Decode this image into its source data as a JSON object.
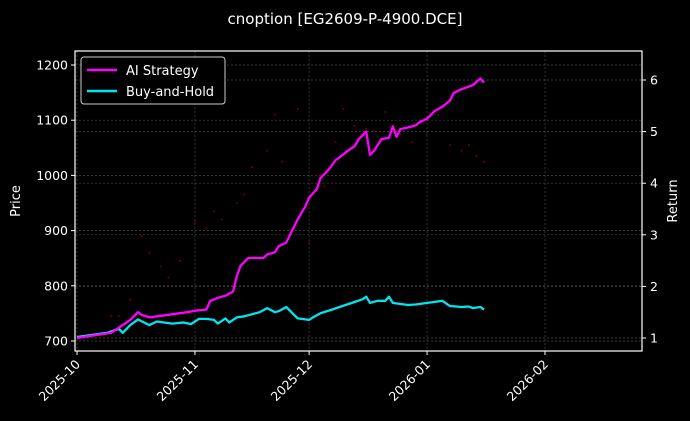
{
  "chart_data": {
    "type": "line",
    "title": "cnoption [EG2609-P-4900.DCE]",
    "xlabel": "",
    "ylabel": "Price",
    "ylabel_right": "Return",
    "x_ticks": [
      "2025-10",
      "2025-11",
      "2025-12",
      "2026-01",
      "2026-02"
    ],
    "y_ticks_left": [
      700,
      800,
      900,
      1000,
      1100,
      1200
    ],
    "y_ticks_right": [
      1,
      2,
      3,
      4,
      5,
      6
    ],
    "ylim_left": [
      690,
      1225
    ],
    "ylim_right": [
      0.75,
      6.5
    ],
    "grid": true,
    "legend": {
      "position": "upper left",
      "entries": [
        "AI Strategy",
        "Buy-and-Hold"
      ]
    },
    "colors": {
      "ai": "#ff00ff",
      "bh": "#00e5ee",
      "price_dots": "#8b0000",
      "background": "#000000",
      "axes": "#ffffff",
      "grid": "#555555"
    },
    "series": [
      {
        "name": "AI Strategy",
        "axis": "right",
        "x": [
          "2025-10-01",
          "2025-10-10",
          "2025-10-14",
          "2025-10-15",
          "2025-10-17",
          "2025-10-18",
          "2025-10-20",
          "2025-10-22",
          "2025-10-24",
          "2025-10-26",
          "2025-10-28",
          "2025-10-30",
          "2025-11-01",
          "2025-11-04",
          "2025-11-05",
          "2025-11-07",
          "2025-11-09",
          "2025-11-11",
          "2025-11-12",
          "2025-11-13",
          "2025-11-15",
          "2025-11-19",
          "2025-11-20",
          "2025-11-22",
          "2025-11-23",
          "2025-11-25",
          "2025-11-26",
          "2025-11-28",
          "2025-11-30",
          "2025-12-01",
          "2025-12-03",
          "2025-12-04",
          "2025-12-06",
          "2025-12-08",
          "2025-12-09",
          "2025-12-11",
          "2025-12-13",
          "2025-12-14",
          "2025-12-16",
          "2025-12-17",
          "2025-12-18",
          "2025-12-20",
          "2025-12-22",
          "2025-12-23",
          "2025-12-24",
          "2025-12-25",
          "2025-12-27",
          "2025-12-29",
          "2025-12-30",
          "2026-01-01",
          "2026-01-03",
          "2026-01-05",
          "2026-01-07",
          "2026-01-08",
          "2026-01-10",
          "2026-01-13",
          "2026-01-15",
          "2026-01-16"
        ],
        "values": [
          1.0,
          1.1,
          1.3,
          1.35,
          1.5,
          1.45,
          1.4,
          1.42,
          1.44,
          1.46,
          1.48,
          1.5,
          1.53,
          1.55,
          1.72,
          1.78,
          1.82,
          1.9,
          2.2,
          2.4,
          2.55,
          2.55,
          2.62,
          2.66,
          2.78,
          2.85,
          3.0,
          3.3,
          3.55,
          3.72,
          3.88,
          4.1,
          4.25,
          4.45,
          4.5,
          4.62,
          4.72,
          4.85,
          5.0,
          4.55,
          4.62,
          4.85,
          4.88,
          5.1,
          4.9,
          5.05,
          5.08,
          5.12,
          5.18,
          5.25,
          5.4,
          5.48,
          5.6,
          5.75,
          5.82,
          5.9,
          6.03,
          5.95
        ]
      },
      {
        "name": "Buy-and-Hold",
        "axis": "right",
        "x": [
          "2025-10-01",
          "2025-10-09",
          "2025-10-12",
          "2025-10-13",
          "2025-10-15",
          "2025-10-17",
          "2025-10-20",
          "2025-10-22",
          "2025-10-26",
          "2025-10-29",
          "2025-10-31",
          "2025-11-02",
          "2025-11-04",
          "2025-11-06",
          "2025-11-07",
          "2025-11-09",
          "2025-11-10",
          "2025-11-11",
          "2025-11-12",
          "2025-11-14",
          "2025-11-18",
          "2025-11-20",
          "2025-11-22",
          "2025-11-23",
          "2025-11-25",
          "2025-11-28",
          "2025-12-01",
          "2025-12-02",
          "2025-12-04",
          "2025-12-07",
          "2025-12-09",
          "2025-12-11",
          "2025-12-13",
          "2025-12-15",
          "2025-12-16",
          "2025-12-17",
          "2025-12-19",
          "2025-12-21",
          "2025-12-22",
          "2025-12-23",
          "2025-12-27",
          "2025-12-29",
          "2026-01-03",
          "2026-01-05",
          "2026-01-07",
          "2026-01-10",
          "2026-01-12",
          "2026-01-13",
          "2026-01-15",
          "2026-01-16"
        ],
        "values": [
          1.02,
          1.1,
          1.18,
          1.1,
          1.25,
          1.36,
          1.25,
          1.32,
          1.28,
          1.3,
          1.27,
          1.37,
          1.37,
          1.35,
          1.28,
          1.38,
          1.3,
          1.35,
          1.4,
          1.42,
          1.5,
          1.58,
          1.5,
          1.52,
          1.6,
          1.38,
          1.35,
          1.4,
          1.48,
          1.55,
          1.6,
          1.65,
          1.7,
          1.75,
          1.8,
          1.68,
          1.72,
          1.72,
          1.8,
          1.68,
          1.64,
          1.65,
          1.7,
          1.72,
          1.62,
          1.6,
          1.61,
          1.58,
          1.6,
          1.55
        ]
      },
      {
        "name": "Price",
        "axis": "left",
        "style": "faint scattered dots",
        "x": [
          "2025-10-10",
          "2025-10-12",
          "2025-10-15",
          "2025-10-18",
          "2025-10-20",
          "2025-10-23",
          "2025-10-25",
          "2025-10-28",
          "2025-11-01",
          "2025-11-04",
          "2025-11-06",
          "2025-11-08",
          "2025-11-12",
          "2025-11-14",
          "2025-11-16",
          "2025-11-20",
          "2025-11-22",
          "2025-11-24",
          "2025-11-28",
          "2025-12-01",
          "2025-12-03",
          "2025-12-05",
          "2025-12-08",
          "2025-12-10",
          "2025-12-13",
          "2025-12-16",
          "2025-12-18",
          "2025-12-21",
          "2025-12-25",
          "2025-12-28",
          "2026-01-01",
          "2026-01-04",
          "2026-01-07",
          "2026-01-10",
          "2026-01-12",
          "2026-01-14",
          "2026-01-16"
        ],
        "values": [
          745,
          745,
          775,
          890,
          860,
          835,
          815,
          845,
          915,
          905,
          935,
          920,
          950,
          965,
          1015,
          1045,
          1110,
          1025,
          1120,
          880,
          1000,
          980,
          1060,
          1120,
          1090,
          1085,
          1080,
          1115,
          1075,
          1060,
          1075,
          1110,
          1055,
          1045,
          1055,
          1035,
          1025
        ]
      }
    ]
  },
  "title": "cnoption [EG2609-P-4900.DCE]",
  "axes": {
    "left_label": "Price",
    "right_label": "Return",
    "left_ticks": [
      "700",
      "800",
      "900",
      "1000",
      "1100",
      "1200"
    ],
    "right_ticks": [
      "1",
      "2",
      "3",
      "4",
      "5",
      "6"
    ],
    "x_ticks": [
      "2025-10",
      "2025-11",
      "2025-12",
      "2026-01",
      "2026-02"
    ]
  },
  "legend": {
    "ai_label": "AI Strategy",
    "bh_label": "Buy-and-Hold"
  }
}
